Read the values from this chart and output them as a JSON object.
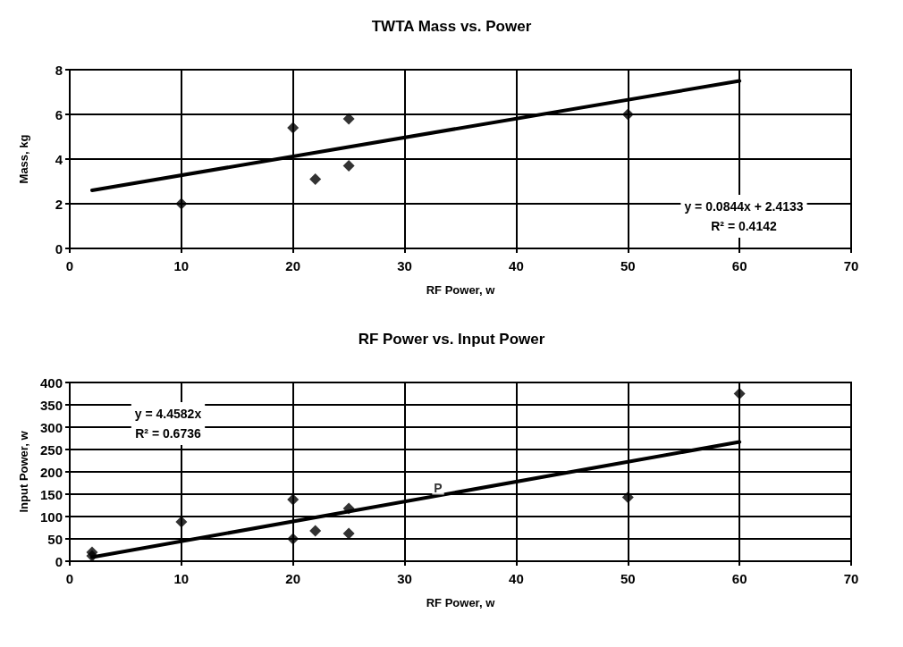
{
  "chart_data": [
    {
      "type": "scatter",
      "title": "TWTA Mass vs. Power",
      "xlabel": "RF Power, w",
      "ylabel": "Mass, kg",
      "xlim": [
        0,
        70
      ],
      "xticks": [
        0,
        10,
        20,
        30,
        40,
        50,
        60,
        70
      ],
      "ylim": [
        0,
        8
      ],
      "yticks": [
        0,
        2,
        4,
        6,
        8
      ],
      "grid": true,
      "marker": "diamond",
      "annotations": [
        "y = 0.0844x + 2.4133",
        "R² = 0.4142"
      ],
      "series": [
        {
          "color": "#000000",
          "x": [
            10,
            20,
            22,
            25,
            25,
            50
          ],
          "values": [
            2,
            5.4,
            3.1,
            5.8,
            3.7,
            6
          ]
        },
        {
          "type": "line",
          "color": "#000000",
          "marker": "none",
          "line_style": "solid",
          "x": [
            2,
            60
          ],
          "values": [
            2.6,
            7.5
          ]
        }
      ]
    },
    {
      "type": "scatter",
      "title": "RF Power vs. Input Power",
      "xlabel": "RF Power, w",
      "ylabel": "Input Power, w",
      "xlim": [
        0,
        70
      ],
      "xticks": [
        0,
        10,
        20,
        30,
        40,
        50,
        60,
        70
      ],
      "ylim": [
        0,
        400
      ],
      "yticks": [
        0,
        50,
        100,
        150,
        200,
        250,
        300,
        350,
        400
      ],
      "grid": true,
      "marker": "diamond",
      "annotations": [
        "y = 4.4582x",
        "R² = 0.6736",
        {
          "text": "P",
          "x": 33,
          "y": 165
        }
      ],
      "series": [
        {
          "color": "#000000",
          "x": [
            2,
            2,
            10,
            20,
            20,
            22,
            25,
            25,
            50,
            60
          ],
          "values": [
            20,
            12,
            88,
            138,
            50,
            68,
            118,
            62,
            143,
            375
          ]
        },
        {
          "type": "line",
          "color": "#000000",
          "marker": "none",
          "line_style": "solid",
          "x": [
            2,
            60
          ],
          "values": [
            9,
            267
          ]
        }
      ]
    }
  ]
}
